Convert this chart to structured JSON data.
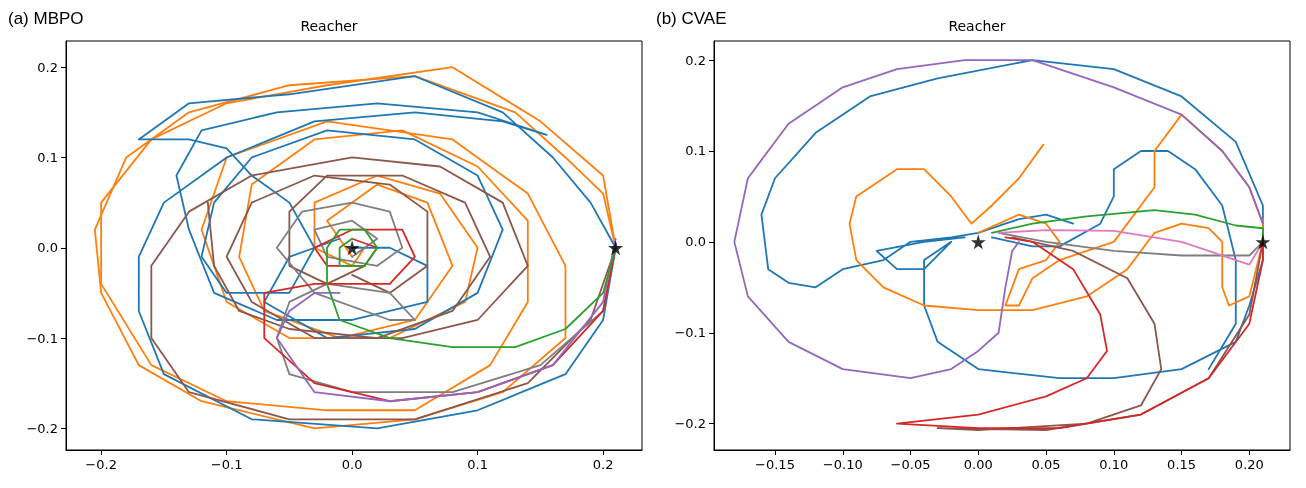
{
  "chart_data": [
    {
      "type": "line",
      "title": "Reacher",
      "annotations": [
        "(a) MBPO"
      ],
      "grid": false,
      "marker": "none",
      "line_style": "solid",
      "xlim": [
        -0.228,
        0.231
      ],
      "ylim": [
        -0.224,
        0.229
      ],
      "xticks": [
        {
          "value": -0.2,
          "label": "−0.2"
        },
        {
          "value": -0.1,
          "label": "−0.1"
        },
        {
          "value": 0,
          "label": "0.0"
        },
        {
          "value": 0.1,
          "label": "0.1"
        },
        {
          "value": 0.2,
          "label": "0.2"
        }
      ],
      "yticks": [
        {
          "value": -0.2,
          "label": "−0.2"
        },
        {
          "value": -0.1,
          "label": "−0.1"
        },
        {
          "value": 0,
          "label": "0.0"
        },
        {
          "value": 0.1,
          "label": "0.1"
        },
        {
          "value": 0.2,
          "label": "0.2"
        }
      ],
      "series": [
        {
          "color": "#ff7f0e",
          "x": [
            0.21,
            0.2,
            0.17,
            0.13,
            0.05,
            -0.05,
            -0.13,
            -0.18,
            -0.205,
            -0.2,
            -0.17,
            -0.12,
            -0.03,
            0.05,
            0.12,
            0.17,
            0.17,
            0.14,
            0.08,
            -0.02,
            -0.1,
            -0.12,
            -0.1,
            -0.05,
            0.03,
            0.09,
            0.1,
            0.07,
            0.02,
            -0.03,
            -0.03,
            0,
            0.01
          ],
          "values": [
            0,
            0.06,
            0.1,
            0.15,
            0.19,
            0.18,
            0.15,
            0.1,
            0.02,
            -0.05,
            -0.13,
            -0.17,
            -0.2,
            -0.19,
            -0.16,
            -0.1,
            -0.02,
            0.06,
            0.12,
            0.14,
            0.1,
            0.02,
            -0.06,
            -0.1,
            -0.1,
            -0.06,
            0,
            0.06,
            0.08,
            0.05,
            0,
            -0.02,
            0
          ]
        },
        {
          "color": "#ff7f0e",
          "x": [
            0.21,
            0.2,
            0.15,
            0.08,
            -0.02,
            -0.1,
            -0.16,
            -0.2,
            -0.2,
            -0.16,
            -0.1,
            -0.02,
            0.05,
            0.11,
            0.14,
            0.14,
            0.1,
            0.04,
            -0.03,
            -0.08,
            -0.09,
            -0.07,
            -0.01,
            0.05,
            0.08,
            0.06,
            0.02,
            -0.02,
            0
          ],
          "values": [
            0,
            0.08,
            0.14,
            0.2,
            0.18,
            0.16,
            0.12,
            0.05,
            -0.04,
            -0.13,
            -0.17,
            -0.18,
            -0.18,
            -0.13,
            -0.06,
            0.03,
            0.09,
            0.13,
            0.12,
            0.07,
            -0.01,
            -0.07,
            -0.1,
            -0.08,
            -0.02,
            0.05,
            0.07,
            0.03,
            -0.01
          ]
        },
        {
          "color": "#1f77b4",
          "x": [
            0.21,
            0.19,
            0.16,
            0.12,
            0.05,
            -0.05,
            -0.13,
            -0.17,
            -0.13,
            -0.1,
            -0.08,
            -0.05,
            -0.03,
            -0.05,
            -0.1,
            -0.12,
            -0.11,
            -0.08,
            -0.02,
            0.05,
            0.1,
            0.12,
            0.1,
            0.05,
            -0.02,
            -0.07,
            -0.05,
            -0.01
          ],
          "values": [
            0,
            0.05,
            0.1,
            0.15,
            0.19,
            0.17,
            0.16,
            0.12,
            0.12,
            0.11,
            0.08,
            0.05,
            0,
            -0.05,
            -0.05,
            -0.01,
            0.05,
            0.1,
            0.13,
            0.12,
            0.08,
            0.02,
            -0.05,
            -0.09,
            -0.1,
            -0.06,
            -0.01,
            0.01
          ]
        },
        {
          "color": "#1f77b4",
          "x": [
            0.21,
            0.2,
            0.17,
            0.1,
            0.02,
            -0.08,
            -0.15,
            -0.17,
            -0.17,
            -0.15,
            -0.1,
            -0.03,
            0.05,
            0.12,
            0.155,
            0.1,
            0.02,
            -0.06,
            -0.12,
            -0.14,
            -0.13,
            -0.11,
            -0.06,
            0,
            0.06,
            0.06,
            0.03,
            0
          ],
          "values": [
            0,
            -0.08,
            -0.14,
            -0.18,
            -0.2,
            -0.19,
            -0.14,
            -0.07,
            -0.01,
            0.05,
            0.1,
            0.14,
            0.15,
            0.14,
            0.125,
            0.15,
            0.16,
            0.15,
            0.13,
            0.08,
            0.02,
            -0.05,
            -0.08,
            -0.08,
            -0.06,
            -0.02,
            0,
            0
          ]
        },
        {
          "color": "#8c564b",
          "x": [
            0.21,
            0.19,
            0.14,
            0.05,
            -0.05,
            -0.13,
            -0.16,
            -0.16,
            -0.13,
            -0.08,
            0,
            0.07,
            0.12,
            0.14,
            0.1,
            0.04,
            -0.03,
            -0.08,
            -0.1,
            -0.08,
            -0.03,
            0.03,
            0.06,
            0.06,
            0.03,
            0
          ],
          "values": [
            0,
            -0.08,
            -0.15,
            -0.19,
            -0.19,
            -0.16,
            -0.1,
            -0.02,
            0.04,
            0.08,
            0.1,
            0.09,
            0.05,
            -0.02,
            -0.08,
            -0.1,
            -0.1,
            -0.06,
            -0.01,
            0.05,
            0.08,
            0.07,
            0.04,
            -0.02,
            -0.05,
            -0.03
          ]
        },
        {
          "color": "#8c564b",
          "x": [
            -0.115,
            -0.11,
            -0.09,
            -0.05,
            0.02,
            0.08,
            0.11,
            0.09,
            0.04,
            -0.02,
            -0.05,
            -0.05,
            -0.02,
            0.01
          ],
          "values": [
            0.05,
            -0.02,
            -0.07,
            -0.09,
            -0.1,
            -0.07,
            -0.01,
            0.05,
            0.08,
            0.08,
            0.04,
            -0.02,
            -0.04,
            -0.02
          ]
        },
        {
          "color": "#7f7f7f",
          "x": [
            0.21,
            0.2,
            0.15,
            0.08,
            0,
            -0.05,
            -0.06,
            -0.05,
            -0.02,
            0.03,
            0.05,
            0.03,
            -0.03,
            -0.06,
            -0.04,
            0,
            0.03,
            0.04,
            0.02,
            -0.02,
            -0.03,
            0,
            0.02,
            0
          ],
          "values": [
            0,
            -0.07,
            -0.13,
            -0.16,
            -0.16,
            -0.14,
            -0.1,
            -0.06,
            -0.04,
            -0.05,
            -0.08,
            -0.08,
            -0.05,
            0,
            0.04,
            0.05,
            0.04,
            0,
            -0.02,
            -0.01,
            0.02,
            0.03,
            0.01,
            -0.01
          ]
        },
        {
          "color": "#d62728",
          "x": [
            0.21,
            0.2,
            0.16,
            0.1,
            0.03,
            -0.03,
            -0.07,
            -0.07,
            -0.03,
            0.03,
            0.05,
            0.04,
            0,
            -0.03,
            -0.02,
            0.01,
            0.02,
            0
          ],
          "values": [
            0,
            -0.07,
            -0.13,
            -0.16,
            -0.17,
            -0.15,
            -0.1,
            -0.05,
            -0.04,
            -0.04,
            -0.01,
            0.02,
            0.02,
            0,
            -0.02,
            -0.02,
            0,
            0.01
          ]
        },
        {
          "color": "#9467bd",
          "x": [
            0.21,
            0.2,
            0.16,
            0.1,
            0.03,
            -0.03,
            -0.06,
            -0.05,
            -0.03,
            -0.01
          ],
          "values": [
            0.01,
            -0.06,
            -0.13,
            -0.16,
            -0.17,
            -0.16,
            -0.1,
            -0.07,
            -0.05,
            -0.05
          ]
        },
        {
          "color": "#2ca02c",
          "x": [
            0.21,
            0.2,
            0.17,
            0.13,
            0.08,
            0.03,
            -0.01,
            -0.02,
            -0.02,
            -0.01,
            0.01,
            0.02,
            0.01,
            -0.01,
            -0.01,
            0
          ],
          "values": [
            0,
            -0.05,
            -0.09,
            -0.11,
            -0.11,
            -0.1,
            -0.08,
            -0.04,
            0,
            0.02,
            0.02,
            0,
            -0.02,
            -0.02,
            0,
            0.01
          ]
        },
        {
          "type": "scatter",
          "marker": "star",
          "color": "#000000",
          "x": [
            0,
            0.21
          ],
          "values": [
            0,
            0
          ]
        }
      ]
    },
    {
      "type": "line",
      "title": "Reacher",
      "annotations": [
        "(b) CVAE"
      ],
      "grid": false,
      "marker": "none",
      "line_style": "solid",
      "xlim": [
        -0.195,
        0.23
      ],
      "ylim": [
        -0.229,
        0.221
      ],
      "xticks": [
        {
          "value": -0.15,
          "label": "−0.15"
        },
        {
          "value": -0.1,
          "label": "−0.10"
        },
        {
          "value": -0.05,
          "label": "−0.05"
        },
        {
          "value": 0,
          "label": "0.00"
        },
        {
          "value": 0.05,
          "label": "0.05"
        },
        {
          "value": 0.1,
          "label": "0.10"
        },
        {
          "value": 0.15,
          "label": "0.15"
        },
        {
          "value": 0.2,
          "label": "0.20"
        }
      ],
      "yticks": [
        {
          "value": -0.2,
          "label": "−0.2"
        },
        {
          "value": -0.1,
          "label": "−0.1"
        },
        {
          "value": 0,
          "label": "0.0"
        },
        {
          "value": 0.1,
          "label": "0.1"
        },
        {
          "value": 0.2,
          "label": "0.2"
        }
      ],
      "series": [
        {
          "color": "#1f77b4",
          "x": [
            0.07,
            0.05,
            0.03,
            0.02,
            0,
            -0.02,
            -0.05,
            -0.07,
            -0.1,
            -0.12,
            -0.14,
            -0.155,
            -0.16,
            -0.15,
            -0.12,
            -0.08,
            -0.03,
            0.04,
            0.1,
            0.15,
            0.19,
            0.21,
            0.21,
            0.2,
            0.19,
            0.15,
            0.1,
            0.06,
            0,
            -0.03,
            -0.04,
            -0.04,
            -0.02,
            -0.04,
            -0.06,
            -0.075,
            -0.04,
            -0.01
          ],
          "values": [
            0.02,
            0.03,
            0.025,
            0.02,
            0.01,
            0.005,
            0,
            -0.02,
            -0.03,
            -0.05,
            -0.045,
            -0.03,
            0.03,
            0.07,
            0.12,
            0.16,
            0.18,
            0.2,
            0.19,
            0.16,
            0.11,
            0.04,
            -0.02,
            -0.07,
            -0.11,
            -0.14,
            -0.15,
            -0.15,
            -0.14,
            -0.11,
            -0.07,
            -0.02,
            0,
            -0.03,
            -0.03,
            -0.01,
            0,
            0.005
          ]
        },
        {
          "color": "#1f77b4",
          "x": [
            0.01,
            0.04,
            0.06,
            0.09,
            0.1,
            0.1,
            0.12,
            0.14,
            0.16,
            0.18,
            0.19,
            0.19,
            0.17
          ],
          "values": [
            0.005,
            -0.005,
            -0.005,
            0.02,
            0.05,
            0.08,
            0.1,
            0.1,
            0.08,
            0.04,
            -0.02,
            -0.09,
            -0.14
          ]
        },
        {
          "color": "#ff7f0e",
          "x": [
            0.048,
            0.03,
            0.01,
            -0.005,
            -0.02,
            -0.04,
            -0.06,
            -0.09,
            -0.095,
            -0.09,
            -0.07,
            -0.04,
            0,
            0.04,
            0.08,
            0.11,
            0.13,
            0.15,
            0.17,
            0.18,
            0.18,
            0.185,
            0.2,
            0.21,
            0.21
          ],
          "values": [
            0.107,
            0.07,
            0.04,
            0.02,
            0.05,
            0.08,
            0.08,
            0.05,
            0.02,
            -0.02,
            -0.05,
            -0.07,
            -0.075,
            -0.075,
            -0.06,
            -0.03,
            0.01,
            0.02,
            0.015,
            0,
            -0.05,
            -0.07,
            -0.06,
            0,
            0.025
          ]
        },
        {
          "color": "#ff7f0e",
          "x": [
            0,
            0.03,
            0.05,
            0.06,
            0.05,
            0.03,
            0.02,
            0.03,
            0.04,
            0.06,
            0.1,
            0.13,
            0.13,
            0.15,
            0.18,
            0.2,
            0.21
          ],
          "values": [
            0.01,
            0.03,
            0.02,
            0,
            -0.02,
            -0.03,
            -0.07,
            -0.07,
            -0.04,
            -0.02,
            0,
            0.06,
            0.1,
            0.14,
            0.1,
            0.06,
            0.02
          ]
        },
        {
          "color": "#2ca02c",
          "x": [
            0.01,
            0.04,
            0.08,
            0.13,
            0.16,
            0.19,
            0.21,
            0.21
          ],
          "values": [
            0.01,
            0.02,
            0.028,
            0.035,
            0.03,
            0.018,
            0.015,
            0
          ]
        },
        {
          "color": "#7f7f7f",
          "x": [
            0.015,
            0.05,
            0.1,
            0.15,
            0.2,
            0.21
          ],
          "values": [
            0.01,
            0,
            -0.01,
            -0.015,
            -0.015,
            0
          ]
        },
        {
          "color": "#e377c2",
          "x": [
            0.015,
            0.05,
            0.1,
            0.15,
            0.19,
            0.2,
            0.21
          ],
          "values": [
            0.01,
            0.013,
            0.012,
            0,
            -0.02,
            -0.025,
            0
          ]
        },
        {
          "color": "#8c564b",
          "x": [
            0.025,
            0.07,
            0.11,
            0.13,
            0.135,
            0.12,
            0.08,
            0,
            -0.03,
            0.05,
            0.12,
            0.17,
            0.2,
            0.21
          ],
          "values": [
            0.005,
            -0.01,
            -0.04,
            -0.09,
            -0.14,
            -0.18,
            -0.2,
            -0.207,
            -0.205,
            -0.207,
            -0.19,
            -0.15,
            -0.08,
            0
          ]
        },
        {
          "color": "#d62728",
          "x": [
            0.02,
            0.04,
            0.07,
            0.09,
            0.095,
            0.08,
            0.05,
            0,
            -0.06,
            0,
            0.06,
            0.12,
            0.17,
            0.2,
            0.21,
            0.21
          ],
          "values": [
            0.005,
            0,
            -0.03,
            -0.08,
            -0.12,
            -0.15,
            -0.17,
            -0.19,
            -0.2,
            -0.205,
            -0.205,
            -0.19,
            -0.15,
            -0.09,
            -0.02,
            0
          ]
        },
        {
          "color": "#9467bd",
          "x": [
            0.21,
            0.2,
            0.18,
            0.15,
            0.1,
            0.04,
            -0.01,
            -0.06,
            -0.1,
            -0.14,
            -0.17,
            -0.18,
            -0.17,
            -0.14,
            -0.1,
            -0.05,
            -0.02,
            0,
            0.015,
            0.02,
            0.025,
            0.03
          ],
          "values": [
            0.02,
            0.06,
            0.1,
            0.14,
            0.17,
            0.2,
            0.2,
            0.19,
            0.17,
            0.13,
            0.07,
            0,
            -0.06,
            -0.11,
            -0.14,
            -0.15,
            -0.14,
            -0.12,
            -0.1,
            -0.05,
            -0.01,
            0
          ]
        },
        {
          "type": "scatter",
          "marker": "star",
          "color": "#000000",
          "x": [
            0,
            0.21
          ],
          "values": [
            0,
            0
          ]
        }
      ]
    }
  ]
}
